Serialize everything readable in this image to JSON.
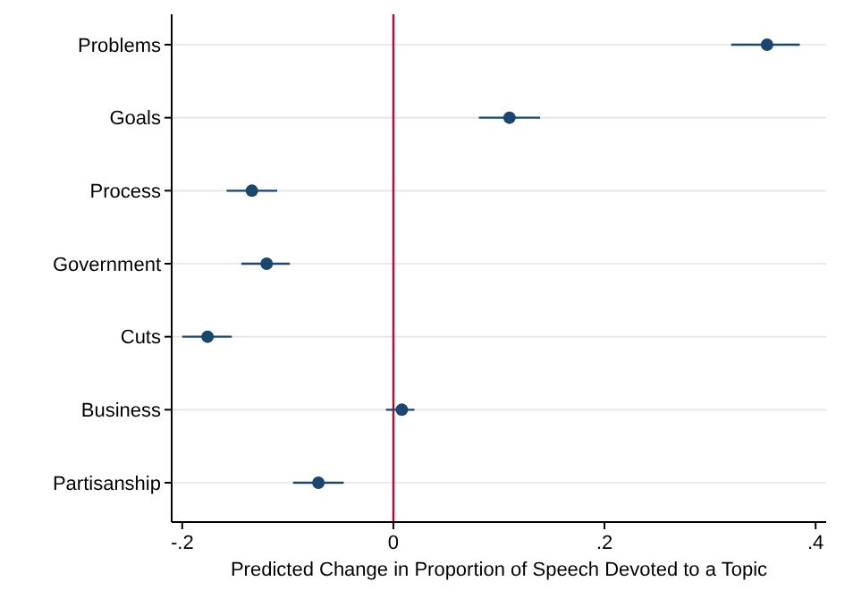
{
  "chart_data": {
    "type": "scatter",
    "xlabel": "Predicted Change in Proportion of Speech Devoted to a Topic",
    "categories": [
      "Problems",
      "Goals",
      "Process",
      "Government",
      "Cuts",
      "Business",
      "Partisanship"
    ],
    "orientation": "horizontal",
    "series": [
      {
        "color": "#1a476f",
        "values": [
          0.354,
          0.11,
          -0.134,
          -0.12,
          -0.176,
          0.008,
          -0.071
        ],
        "errors": [
          [
            0.32,
            0.385
          ],
          [
            0.081,
            0.139
          ],
          [
            -0.158,
            -0.11
          ],
          [
            -0.144,
            -0.098
          ],
          [
            -0.2,
            -0.153
          ],
          [
            -0.007,
            0.02
          ],
          [
            -0.095,
            -0.047
          ]
        ]
      }
    ],
    "xlim": [
      -0.21,
      0.41
    ],
    "xticks": [
      {
        "value": -0.2,
        "label": "-.2"
      },
      {
        "value": 0,
        "label": "0"
      },
      {
        "value": 0.2,
        "label": ".2"
      },
      {
        "value": 0.4,
        "label": ".4"
      }
    ],
    "ref_lines": [
      {
        "axis": "x",
        "value": 0,
        "color": "#c10534"
      }
    ],
    "grid": "y",
    "marker": "circle"
  }
}
